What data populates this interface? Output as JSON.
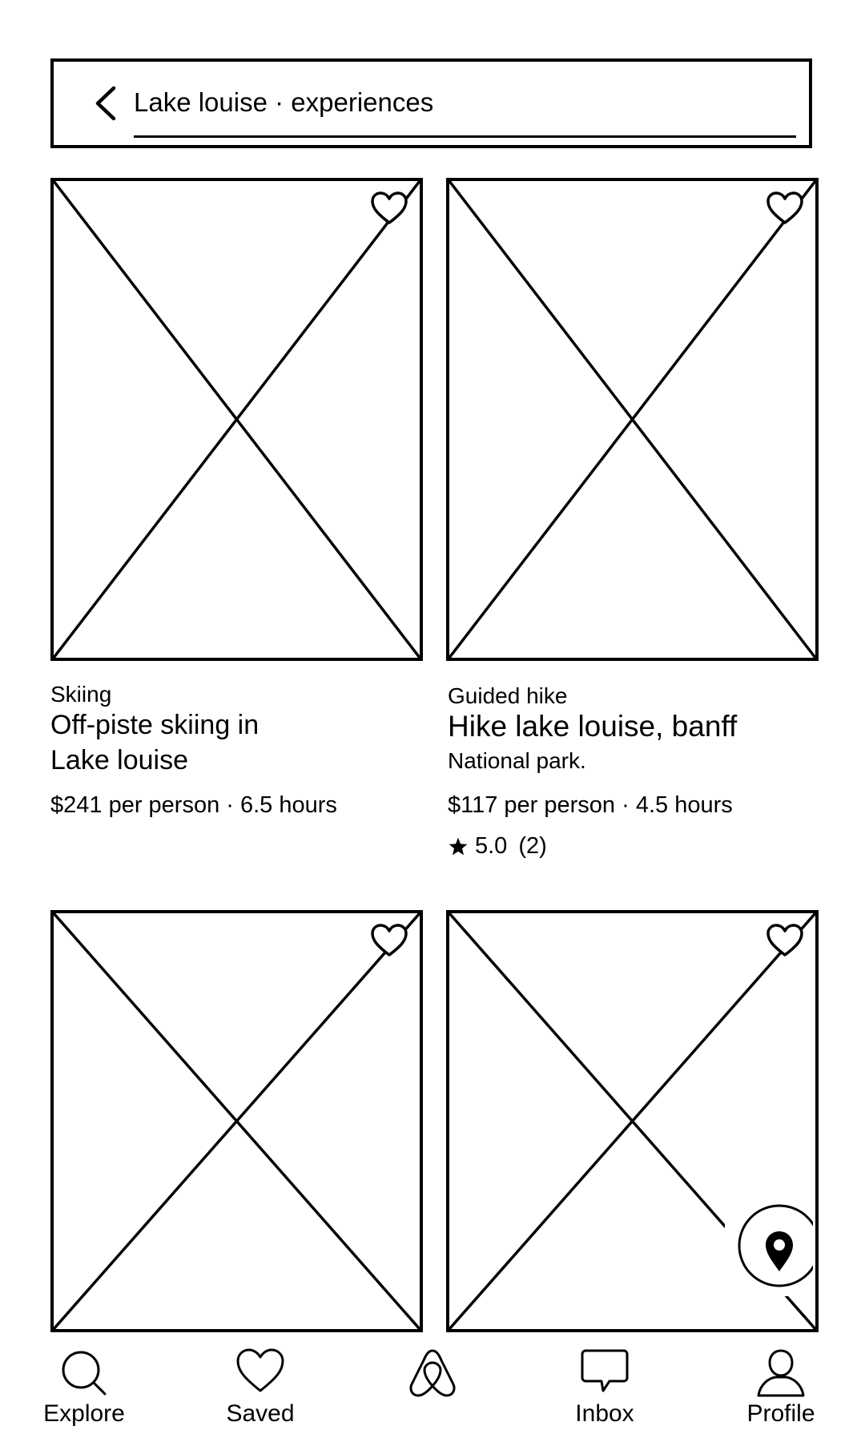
{
  "search": {
    "title": "Lake louise · experiences"
  },
  "listings": [
    {
      "category": "Skiing",
      "title_line1": "Off-piste skiing in",
      "title_line2": "Lake louise",
      "meta": "$241 per person · 6.5 hours"
    },
    {
      "category": "Guided hike",
      "title": "Hike lake louise, banff",
      "subtitle": "National park.",
      "meta": "$117 per person · 4.5 hours",
      "rating": "5.0",
      "reviews": "(2)"
    }
  ],
  "tabs": [
    {
      "label": "Explore",
      "icon": "search-icon"
    },
    {
      "label": "Saved",
      "icon": "heart-icon"
    },
    {
      "label": "",
      "icon": "airbnb-logo-icon"
    },
    {
      "label": "Inbox",
      "icon": "chat-bubble-icon"
    },
    {
      "label": "Profile",
      "icon": "user-icon"
    }
  ]
}
